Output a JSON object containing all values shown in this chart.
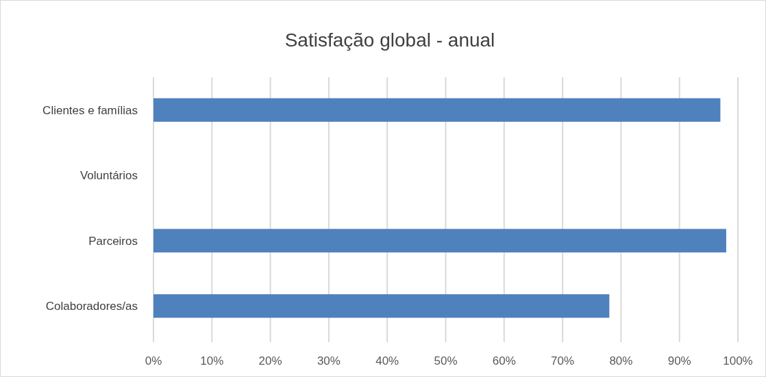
{
  "chart_data": {
    "type": "bar",
    "orientation": "horizontal",
    "title": "Satisfação global - anual",
    "categories": [
      "Clientes e famílias",
      "Voluntários",
      "Parceiros",
      "Colaboradores/as"
    ],
    "values": [
      97,
      null,
      98,
      78
    ],
    "color": "#4f81bd",
    "xlim": [
      0,
      100
    ],
    "xticks": [
      {
        "value": 0,
        "label": "0%"
      },
      {
        "value": 10,
        "label": "10%"
      },
      {
        "value": 20,
        "label": "20%"
      },
      {
        "value": 30,
        "label": "30%"
      },
      {
        "value": 40,
        "label": "40%"
      },
      {
        "value": 50,
        "label": "50%"
      },
      {
        "value": 60,
        "label": "60%"
      },
      {
        "value": 70,
        "label": "70%"
      },
      {
        "value": 80,
        "label": "80%"
      },
      {
        "value": 90,
        "label": "90%"
      },
      {
        "value": 100,
        "label": "100%"
      }
    ],
    "grid": "x"
  }
}
